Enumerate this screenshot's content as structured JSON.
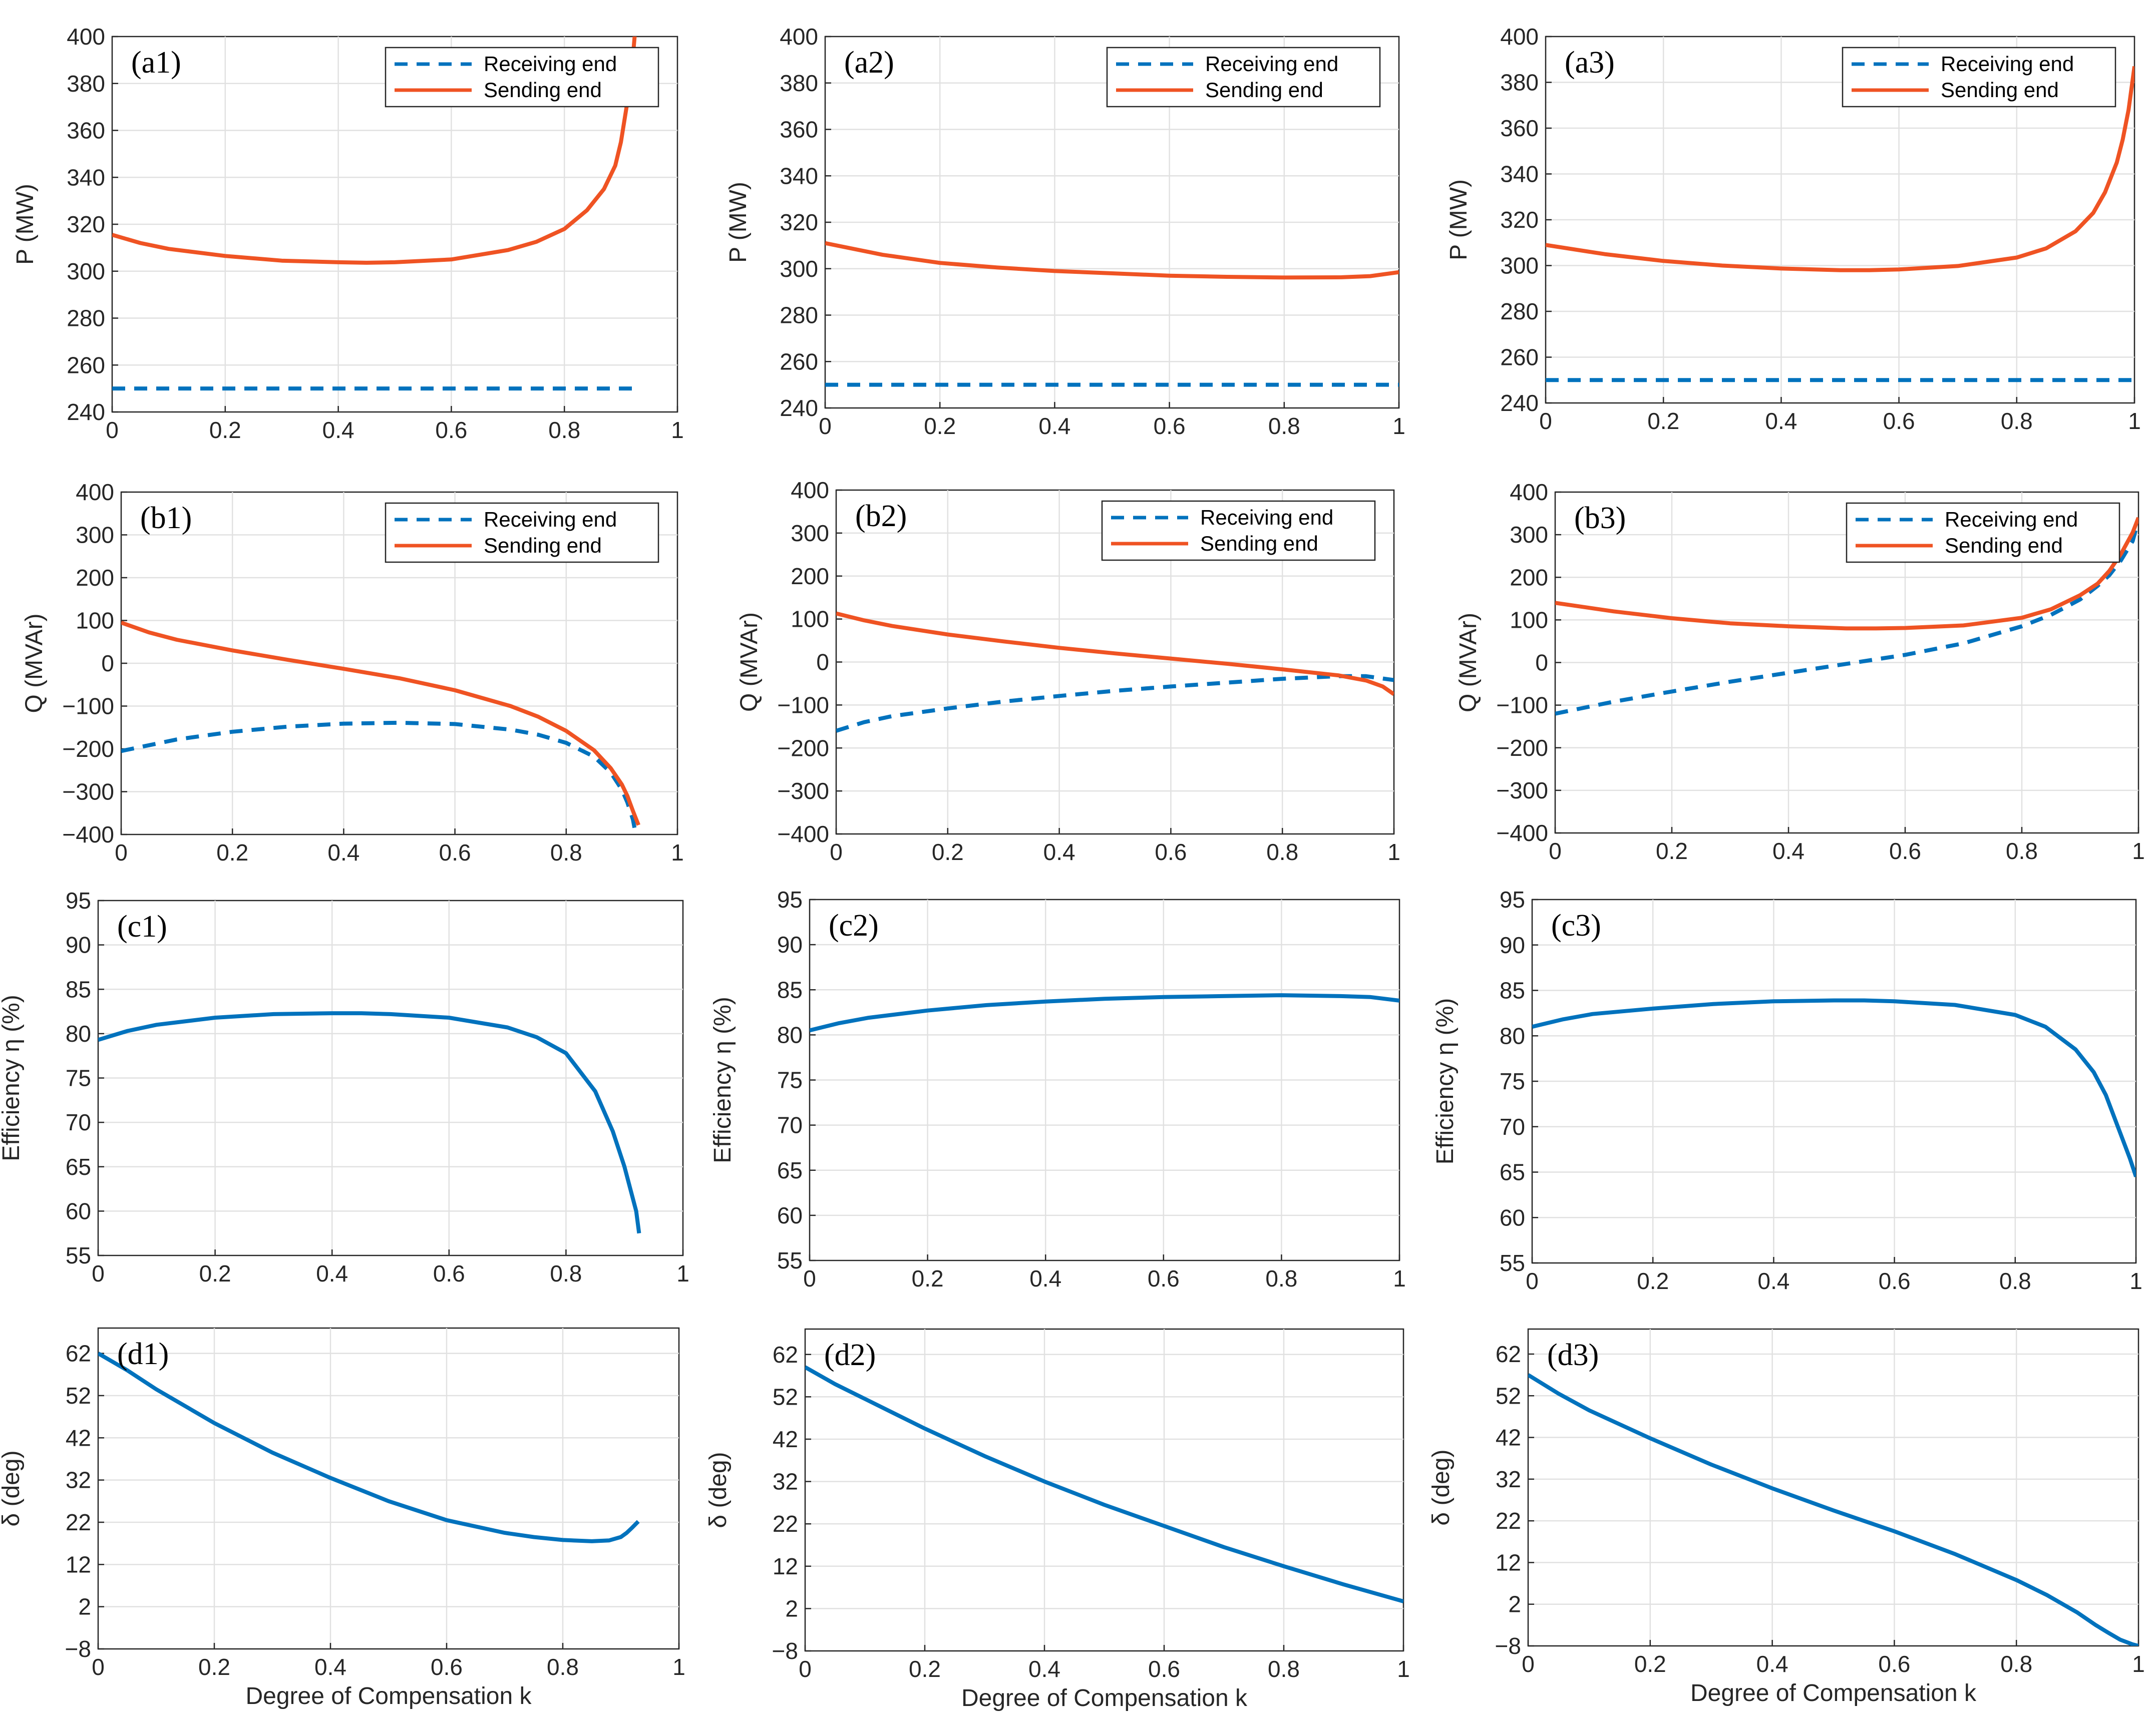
{
  "figure": {
    "colors": {
      "receiving": "#0072BD",
      "sending": "#EF5323",
      "single": "#0072BD"
    },
    "legend_labels": {
      "receiving": "Receiving end",
      "sending": "Sending end"
    },
    "ylabels": {
      "P": "P (MW)",
      "Q": "Q (MVAr)",
      "eta": "Efficiency η (%)",
      "delta": "δ (deg)"
    },
    "xlabel": "Degree of Compensation k"
  },
  "chart_data": [
    {
      "id": "a1",
      "type": "line",
      "tag": "(a1)",
      "ylabel": "P (MW)",
      "xlabel": "",
      "xlim": [
        0,
        1
      ],
      "ylim": [
        240,
        400
      ],
      "xticks": [
        0,
        0.2,
        0.4,
        0.6,
        0.8,
        1
      ],
      "yticks": [
        240,
        260,
        280,
        300,
        320,
        340,
        360,
        380,
        400
      ],
      "grid": true,
      "legend": "top-right",
      "series": [
        {
          "name": "Receiving end",
          "style": "dashed",
          "color": "#0072BD",
          "x": [
            0,
            0.92
          ],
          "y": [
            250,
            250
          ]
        },
        {
          "name": "Sending end",
          "style": "solid",
          "color": "#EF5323",
          "x": [
            0,
            0.05,
            0.1,
            0.2,
            0.3,
            0.4,
            0.45,
            0.5,
            0.6,
            0.7,
            0.75,
            0.8,
            0.84,
            0.87,
            0.89,
            0.9,
            0.91,
            0.92,
            0.925
          ],
          "y": [
            315.5,
            312,
            309.5,
            306.5,
            304.5,
            303.8,
            303.6,
            303.8,
            305,
            309,
            312.5,
            318,
            326,
            335,
            345,
            355,
            370,
            388,
            402
          ]
        }
      ]
    },
    {
      "id": "a2",
      "type": "line",
      "tag": "(a2)",
      "ylabel": "P (MW)",
      "xlabel": "",
      "xlim": [
        0,
        1
      ],
      "ylim": [
        240,
        400
      ],
      "xticks": [
        0,
        0.2,
        0.4,
        0.6,
        0.8,
        1
      ],
      "yticks": [
        240,
        260,
        280,
        300,
        320,
        340,
        360,
        380,
        400
      ],
      "grid": true,
      "legend": "top-right",
      "series": [
        {
          "name": "Receiving end",
          "style": "dashed",
          "color": "#0072BD",
          "x": [
            0,
            1
          ],
          "y": [
            250,
            250
          ]
        },
        {
          "name": "Sending end",
          "style": "solid",
          "color": "#EF5323",
          "x": [
            0,
            0.1,
            0.2,
            0.3,
            0.4,
            0.5,
            0.6,
            0.7,
            0.8,
            0.9,
            0.95,
            1
          ],
          "y": [
            311,
            306,
            302.5,
            300.5,
            299,
            298,
            297,
            296.5,
            296.2,
            296.3,
            296.8,
            298.5
          ]
        }
      ]
    },
    {
      "id": "a3",
      "type": "line",
      "tag": "(a3)",
      "ylabel": "P (MW)",
      "xlabel": "",
      "xlim": [
        0,
        1
      ],
      "ylim": [
        240,
        400
      ],
      "xticks": [
        0,
        0.2,
        0.4,
        0.6,
        0.8,
        1
      ],
      "yticks": [
        240,
        260,
        280,
        300,
        320,
        340,
        360,
        380,
        400
      ],
      "grid": true,
      "legend": "top-right",
      "series": [
        {
          "name": "Receiving end",
          "style": "dashed",
          "color": "#0072BD",
          "x": [
            0,
            1
          ],
          "y": [
            250,
            250
          ]
        },
        {
          "name": "Sending end",
          "style": "solid",
          "color": "#EF5323",
          "x": [
            0,
            0.1,
            0.2,
            0.3,
            0.4,
            0.5,
            0.55,
            0.6,
            0.7,
            0.8,
            0.85,
            0.9,
            0.93,
            0.95,
            0.97,
            0.98,
            0.99,
            1
          ],
          "y": [
            309,
            305,
            302,
            300,
            298.7,
            298,
            298,
            298.3,
            299.8,
            303.5,
            307.5,
            315,
            323,
            332,
            345,
            355,
            368,
            387
          ]
        }
      ]
    },
    {
      "id": "b1",
      "type": "line",
      "tag": "(b1)",
      "ylabel": "Q (MVAr)",
      "xlabel": "",
      "xlim": [
        0,
        1
      ],
      "ylim": [
        -400,
        400
      ],
      "xticks": [
        0,
        0.2,
        0.4,
        0.6,
        0.8,
        1
      ],
      "yticks": [
        -400,
        -300,
        -200,
        -100,
        0,
        100,
        200,
        300,
        400
      ],
      "grid": true,
      "legend": "top-right",
      "series": [
        {
          "name": "Receiving end",
          "style": "dashed",
          "color": "#0072BD",
          "x": [
            0,
            0.1,
            0.2,
            0.3,
            0.4,
            0.5,
            0.6,
            0.7,
            0.75,
            0.8,
            0.85,
            0.88,
            0.9,
            0.91,
            0.92,
            0.925
          ],
          "y": [
            -205,
            -178,
            -160,
            -148,
            -141,
            -139,
            -142,
            -155,
            -167,
            -186,
            -218,
            -255,
            -295,
            -325,
            -365,
            -400
          ]
        },
        {
          "name": "Sending end",
          "style": "solid",
          "color": "#EF5323",
          "x": [
            0,
            0.05,
            0.1,
            0.2,
            0.3,
            0.4,
            0.5,
            0.6,
            0.7,
            0.75,
            0.8,
            0.85,
            0.88,
            0.9,
            0.91,
            0.92,
            0.93
          ],
          "y": [
            95,
            72,
            55,
            30,
            8,
            -13,
            -35,
            -63,
            -100,
            -125,
            -158,
            -203,
            -245,
            -283,
            -310,
            -345,
            -378
          ]
        }
      ]
    },
    {
      "id": "b2",
      "type": "line",
      "tag": "(b2)",
      "ylabel": "Q (MVAr)",
      "xlabel": "",
      "xlim": [
        0,
        1
      ],
      "ylim": [
        -400,
        400
      ],
      "xticks": [
        0,
        0.2,
        0.4,
        0.6,
        0.8,
        1
      ],
      "yticks": [
        -400,
        -300,
        -200,
        -100,
        0,
        100,
        200,
        300,
        400
      ],
      "grid": true,
      "legend": "top-right",
      "series": [
        {
          "name": "Receiving end",
          "style": "dashed",
          "color": "#0072BD",
          "x": [
            0,
            0.05,
            0.1,
            0.2,
            0.3,
            0.4,
            0.5,
            0.6,
            0.7,
            0.8,
            0.9,
            0.95,
            1
          ],
          "y": [
            -160,
            -140,
            -126,
            -108,
            -92,
            -79,
            -67,
            -57,
            -48,
            -39,
            -33,
            -33,
            -42
          ]
        },
        {
          "name": "Sending end",
          "style": "solid",
          "color": "#EF5323",
          "x": [
            0,
            0.05,
            0.1,
            0.2,
            0.3,
            0.4,
            0.5,
            0.6,
            0.7,
            0.8,
            0.9,
            0.95,
            0.98,
            1
          ],
          "y": [
            113,
            97,
            84,
            64,
            48,
            33,
            20,
            8,
            -4,
            -17,
            -31,
            -43,
            -57,
            -75
          ]
        }
      ]
    },
    {
      "id": "b3",
      "type": "line",
      "tag": "(b3)",
      "ylabel": "Q (MVAr)",
      "xlabel": "",
      "xlim": [
        0,
        1
      ],
      "ylim": [
        -400,
        400
      ],
      "xticks": [
        0,
        0.2,
        0.4,
        0.6,
        0.8,
        1
      ],
      "yticks": [
        -400,
        -300,
        -200,
        -100,
        0,
        100,
        200,
        300,
        400
      ],
      "grid": true,
      "legend": "top-right",
      "series": [
        {
          "name": "Receiving end",
          "style": "dashed",
          "color": "#0072BD",
          "x": [
            0,
            0.1,
            0.2,
            0.3,
            0.4,
            0.5,
            0.6,
            0.7,
            0.8,
            0.85,
            0.9,
            0.93,
            0.95,
            0.97,
            0.99,
            1
          ],
          "y": [
            -120,
            -92,
            -68,
            -45,
            -24,
            -3,
            18,
            45,
            85,
            112,
            148,
            180,
            205,
            240,
            285,
            335
          ]
        },
        {
          "name": "Sending end",
          "style": "solid",
          "color": "#EF5323",
          "x": [
            0,
            0.1,
            0.2,
            0.3,
            0.4,
            0.5,
            0.55,
            0.6,
            0.7,
            0.8,
            0.85,
            0.9,
            0.93,
            0.95,
            0.97,
            0.99,
            1
          ],
          "y": [
            140,
            120,
            104,
            92,
            85,
            80,
            80,
            81,
            87,
            105,
            125,
            158,
            185,
            215,
            255,
            305,
            340
          ]
        }
      ]
    },
    {
      "id": "c1",
      "type": "line",
      "tag": "(c1)",
      "ylabel": "Efficiency η (%)",
      "xlabel": "",
      "xlim": [
        0,
        1
      ],
      "ylim": [
        55,
        95
      ],
      "xticks": [
        0,
        0.2,
        0.4,
        0.6,
        0.8,
        1
      ],
      "yticks": [
        55,
        60,
        65,
        70,
        75,
        80,
        85,
        90,
        95
      ],
      "grid": true,
      "legend": "none",
      "series": [
        {
          "name": "",
          "style": "solid",
          "color": "#0072BD",
          "x": [
            0,
            0.05,
            0.1,
            0.2,
            0.3,
            0.4,
            0.45,
            0.5,
            0.6,
            0.7,
            0.75,
            0.8,
            0.85,
            0.88,
            0.9,
            0.91,
            0.92,
            0.925
          ],
          "y": [
            79.3,
            80.3,
            81,
            81.8,
            82.2,
            82.3,
            82.3,
            82.2,
            81.8,
            80.7,
            79.6,
            77.8,
            73.5,
            69,
            65,
            62.5,
            60,
            57.5
          ]
        }
      ]
    },
    {
      "id": "c2",
      "type": "line",
      "tag": "(c2)",
      "ylabel": "Efficiency η (%)",
      "xlabel": "",
      "xlim": [
        0,
        1
      ],
      "ylim": [
        55,
        95
      ],
      "xticks": [
        0,
        0.2,
        0.4,
        0.6,
        0.8,
        1
      ],
      "yticks": [
        55,
        60,
        65,
        70,
        75,
        80,
        85,
        90,
        95
      ],
      "grid": true,
      "legend": "none",
      "series": [
        {
          "name": "",
          "style": "solid",
          "color": "#0072BD",
          "x": [
            0,
            0.05,
            0.1,
            0.2,
            0.3,
            0.4,
            0.5,
            0.6,
            0.7,
            0.8,
            0.9,
            0.95,
            1
          ],
          "y": [
            80.5,
            81.3,
            81.9,
            82.7,
            83.3,
            83.7,
            84,
            84.2,
            84.3,
            84.4,
            84.3,
            84.2,
            83.8
          ]
        }
      ]
    },
    {
      "id": "c3",
      "type": "line",
      "tag": "(c3)",
      "ylabel": "Efficiency η (%)",
      "xlabel": "",
      "xlim": [
        0,
        1
      ],
      "ylim": [
        55,
        95
      ],
      "xticks": [
        0,
        0.2,
        0.4,
        0.6,
        0.8,
        1
      ],
      "yticks": [
        55,
        60,
        65,
        70,
        75,
        80,
        85,
        90,
        95
      ],
      "grid": true,
      "legend": "none",
      "series": [
        {
          "name": "",
          "style": "solid",
          "color": "#0072BD",
          "x": [
            0,
            0.05,
            0.1,
            0.2,
            0.3,
            0.4,
            0.5,
            0.55,
            0.6,
            0.7,
            0.8,
            0.85,
            0.9,
            0.93,
            0.95,
            0.97,
            0.99,
            1
          ],
          "y": [
            81,
            81.8,
            82.4,
            83,
            83.5,
            83.8,
            83.9,
            83.9,
            83.8,
            83.4,
            82.3,
            81,
            78.5,
            76,
            73.5,
            70,
            66.5,
            64.5
          ]
        }
      ]
    },
    {
      "id": "d1",
      "type": "line",
      "tag": "(d1)",
      "ylabel": "δ (deg)",
      "xlabel": "Degree of Compensation k",
      "xlim": [
        0,
        1
      ],
      "ylim": [
        -8,
        68
      ],
      "xticks": [
        0,
        0.2,
        0.4,
        0.6,
        0.8,
        1
      ],
      "yticks": [
        -8,
        2,
        12,
        22,
        32,
        42,
        52,
        62
      ],
      "grid": true,
      "legend": "none",
      "series": [
        {
          "name": "",
          "style": "solid",
          "color": "#0072BD",
          "x": [
            0,
            0.05,
            0.1,
            0.2,
            0.3,
            0.4,
            0.5,
            0.6,
            0.7,
            0.75,
            0.8,
            0.85,
            0.88,
            0.9,
            0.91,
            0.92,
            0.93
          ],
          "y": [
            62,
            58,
            53.5,
            45.5,
            38.5,
            32.5,
            27,
            22.5,
            19.5,
            18.5,
            17.8,
            17.5,
            17.7,
            18.5,
            19.5,
            20.8,
            22.2
          ]
        }
      ]
    },
    {
      "id": "d2",
      "type": "line",
      "tag": "(d2)",
      "ylabel": "δ (deg)",
      "xlabel": "Degree of Compensation k",
      "xlim": [
        0,
        1
      ],
      "ylim": [
        -8,
        68
      ],
      "xticks": [
        0,
        0.2,
        0.4,
        0.6,
        0.8,
        1
      ],
      "yticks": [
        -8,
        2,
        12,
        22,
        32,
        42,
        52,
        62
      ],
      "grid": true,
      "legend": "none",
      "series": [
        {
          "name": "",
          "style": "solid",
          "color": "#0072BD",
          "x": [
            0,
            0.05,
            0.1,
            0.2,
            0.3,
            0.4,
            0.5,
            0.6,
            0.7,
            0.8,
            0.9,
            1
          ],
          "y": [
            59,
            55,
            51.5,
            44.5,
            38,
            32,
            26.5,
            21.5,
            16.5,
            12,
            7.7,
            3.7
          ]
        }
      ]
    },
    {
      "id": "d3",
      "type": "line",
      "tag": "(d3)",
      "ylabel": "δ (deg)",
      "xlabel": "Degree of Compensation k",
      "xlim": [
        0,
        1
      ],
      "ylim": [
        -8,
        68
      ],
      "xticks": [
        0,
        0.2,
        0.4,
        0.6,
        0.8,
        1
      ],
      "yticks": [
        -8,
        2,
        12,
        22,
        32,
        42,
        52,
        62
      ],
      "grid": true,
      "legend": "none",
      "series": [
        {
          "name": "",
          "style": "solid",
          "color": "#0072BD",
          "x": [
            0,
            0.05,
            0.1,
            0.2,
            0.3,
            0.4,
            0.5,
            0.6,
            0.7,
            0.8,
            0.85,
            0.9,
            0.93,
            0.95,
            0.97,
            0.99,
            1
          ],
          "y": [
            57,
            52.5,
            48.5,
            41.8,
            35.5,
            29.8,
            24.5,
            19.5,
            14,
            7.8,
            4.2,
            0,
            -3,
            -4.8,
            -6.5,
            -7.6,
            -8
          ]
        }
      ]
    }
  ]
}
